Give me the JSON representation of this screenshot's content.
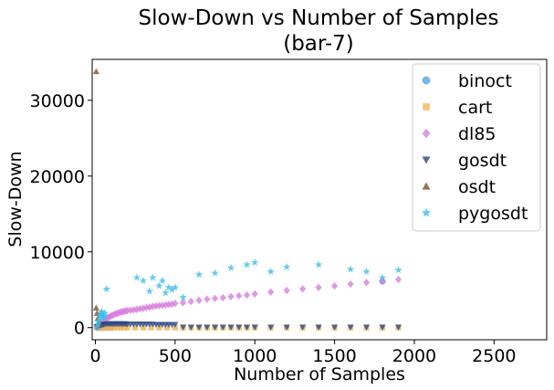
{
  "chart_data": {
    "type": "scatter",
    "title": [
      "Slow-Down vs Number of Samples",
      "(bar-7)"
    ],
    "xlabel": "Number of Samples",
    "ylabel": "Slow-Down",
    "xlim": [
      -20,
      2830
    ],
    "ylim": [
      -1600,
      35400
    ],
    "xticks": [
      0,
      500,
      1000,
      1500,
      2000,
      2500
    ],
    "yticks": [
      0,
      10000,
      20000,
      30000
    ],
    "legend_position": "top-right",
    "series": [
      {
        "name": "binoct",
        "marker": "circle",
        "color": "#5DA5DA",
        "points": [
          [
            10,
            0
          ],
          [
            20,
            0
          ],
          [
            30,
            0
          ],
          [
            40,
            0
          ],
          [
            50,
            0
          ],
          [
            60,
            0
          ],
          [
            80,
            0
          ],
          [
            100,
            0
          ],
          [
            1800,
            6100
          ]
        ]
      },
      {
        "name": "cart",
        "marker": "square",
        "color": "#F1B458",
        "points": [
          [
            10,
            0
          ],
          [
            20,
            0
          ],
          [
            40,
            0
          ],
          [
            60,
            0
          ],
          [
            80,
            0
          ],
          [
            100,
            0
          ],
          [
            120,
            0
          ],
          [
            140,
            0
          ],
          [
            160,
            0
          ],
          [
            180,
            0
          ],
          [
            200,
            0
          ],
          [
            250,
            0
          ],
          [
            300,
            0
          ],
          [
            350,
            0
          ],
          [
            400,
            0
          ],
          [
            450,
            0
          ],
          [
            500,
            0
          ],
          [
            550,
            0
          ],
          [
            600,
            0
          ],
          [
            650,
            0
          ],
          [
            700,
            0
          ],
          [
            750,
            0
          ],
          [
            800,
            0
          ],
          [
            850,
            0
          ],
          [
            900,
            0
          ],
          [
            950,
            0
          ],
          [
            1000,
            0
          ],
          [
            1100,
            0
          ],
          [
            1200,
            0
          ],
          [
            1300,
            0
          ],
          [
            1400,
            0
          ],
          [
            1500,
            0
          ],
          [
            1600,
            0
          ],
          [
            1700,
            0
          ],
          [
            1800,
            0
          ],
          [
            1900,
            0
          ]
        ]
      },
      {
        "name": "dl85",
        "marker": "diamond",
        "color": "#DA7EE0",
        "points": [
          [
            10,
            150
          ],
          [
            20,
            300
          ],
          [
            30,
            500
          ],
          [
            40,
            700
          ],
          [
            50,
            900
          ],
          [
            60,
            1100
          ],
          [
            70,
            1200
          ],
          [
            80,
            1350
          ],
          [
            90,
            1450
          ],
          [
            100,
            1550
          ],
          [
            110,
            1650
          ],
          [
            120,
            1750
          ],
          [
            130,
            1850
          ],
          [
            140,
            1900
          ],
          [
            150,
            2000
          ],
          [
            160,
            2050
          ],
          [
            170,
            2100
          ],
          [
            180,
            2150
          ],
          [
            190,
            2200
          ],
          [
            200,
            2250
          ],
          [
            220,
            2300
          ],
          [
            240,
            2350
          ],
          [
            260,
            2400
          ],
          [
            280,
            2500
          ],
          [
            300,
            2550
          ],
          [
            320,
            2650
          ],
          [
            340,
            2700
          ],
          [
            360,
            2800
          ],
          [
            380,
            2850
          ],
          [
            400,
            2900
          ],
          [
            420,
            2950
          ],
          [
            440,
            3000
          ],
          [
            460,
            3050
          ],
          [
            480,
            3100
          ],
          [
            500,
            3200
          ],
          [
            550,
            3300
          ],
          [
            600,
            3450
          ],
          [
            650,
            3600
          ],
          [
            700,
            3750
          ],
          [
            750,
            3850
          ],
          [
            800,
            3950
          ],
          [
            850,
            4100
          ],
          [
            900,
            4200
          ],
          [
            950,
            4300
          ],
          [
            1000,
            4450
          ],
          [
            1100,
            4700
          ],
          [
            1200,
            4900
          ],
          [
            1300,
            5100
          ],
          [
            1400,
            5300
          ],
          [
            1500,
            5500
          ],
          [
            1600,
            5750
          ],
          [
            1700,
            5950
          ],
          [
            1800,
            6150
          ],
          [
            1900,
            6350
          ]
        ]
      },
      {
        "name": "gosdt",
        "marker": "triangle-down",
        "color": "#2C4885",
        "points": [
          [
            10,
            100
          ],
          [
            20,
            200
          ],
          [
            30,
            300
          ],
          [
            40,
            350
          ],
          [
            50,
            400
          ],
          [
            60,
            450
          ],
          [
            70,
            500
          ],
          [
            80,
            500
          ],
          [
            90,
            500
          ],
          [
            100,
            500
          ],
          [
            110,
            500
          ],
          [
            120,
            500
          ],
          [
            130,
            500
          ],
          [
            140,
            500
          ],
          [
            150,
            500
          ],
          [
            160,
            500
          ],
          [
            170,
            500
          ],
          [
            180,
            500
          ],
          [
            190,
            500
          ],
          [
            200,
            450
          ],
          [
            220,
            450
          ],
          [
            240,
            450
          ],
          [
            260,
            450
          ],
          [
            280,
            450
          ],
          [
            300,
            450
          ],
          [
            320,
            450
          ],
          [
            340,
            450
          ],
          [
            360,
            450
          ],
          [
            380,
            400
          ],
          [
            400,
            400
          ],
          [
            420,
            400
          ],
          [
            440,
            400
          ],
          [
            460,
            400
          ],
          [
            480,
            400
          ],
          [
            500,
            400
          ],
          [
            550,
            50
          ],
          [
            600,
            50
          ],
          [
            650,
            50
          ],
          [
            700,
            50
          ],
          [
            750,
            50
          ],
          [
            800,
            50
          ],
          [
            850,
            50
          ],
          [
            900,
            50
          ],
          [
            950,
            50
          ],
          [
            1000,
            50
          ],
          [
            1100,
            50
          ],
          [
            1200,
            50
          ],
          [
            1300,
            50
          ],
          [
            1400,
            50
          ],
          [
            1500,
            50
          ],
          [
            1600,
            50
          ],
          [
            1700,
            50
          ],
          [
            1800,
            50
          ],
          [
            1900,
            50
          ]
        ]
      },
      {
        "name": "osdt",
        "marker": "triangle-up",
        "color": "#7A5230",
        "points": [
          [
            5,
            33800
          ],
          [
            5,
            2600
          ],
          [
            10,
            1900
          ],
          [
            15,
            1200
          ],
          [
            20,
            700
          ],
          [
            25,
            300
          ]
        ]
      },
      {
        "name": "pygosdt",
        "marker": "star",
        "color": "#3DBDEB",
        "points": [
          [
            10,
            100
          ],
          [
            15,
            400
          ],
          [
            20,
            800
          ],
          [
            25,
            1200
          ],
          [
            30,
            1600
          ],
          [
            35,
            1900
          ],
          [
            40,
            2100
          ],
          [
            45,
            1700
          ],
          [
            50,
            1500
          ],
          [
            55,
            1300
          ],
          [
            60,
            1900
          ],
          [
            70,
            5100
          ],
          [
            260,
            6600
          ],
          [
            300,
            6200
          ],
          [
            340,
            4800
          ],
          [
            360,
            6600
          ],
          [
            400,
            5500
          ],
          [
            420,
            6200
          ],
          [
            440,
            4600
          ],
          [
            460,
            5300
          ],
          [
            480,
            5000
          ],
          [
            500,
            5300
          ],
          [
            550,
            4000
          ],
          [
            650,
            7000
          ],
          [
            750,
            7200
          ],
          [
            850,
            7900
          ],
          [
            950,
            8300
          ],
          [
            1000,
            8600
          ],
          [
            1100,
            7400
          ],
          [
            1200,
            8000
          ],
          [
            1400,
            8300
          ],
          [
            1600,
            7700
          ],
          [
            1700,
            7400
          ],
          [
            1800,
            6600
          ],
          [
            1900,
            7600
          ]
        ]
      }
    ]
  }
}
